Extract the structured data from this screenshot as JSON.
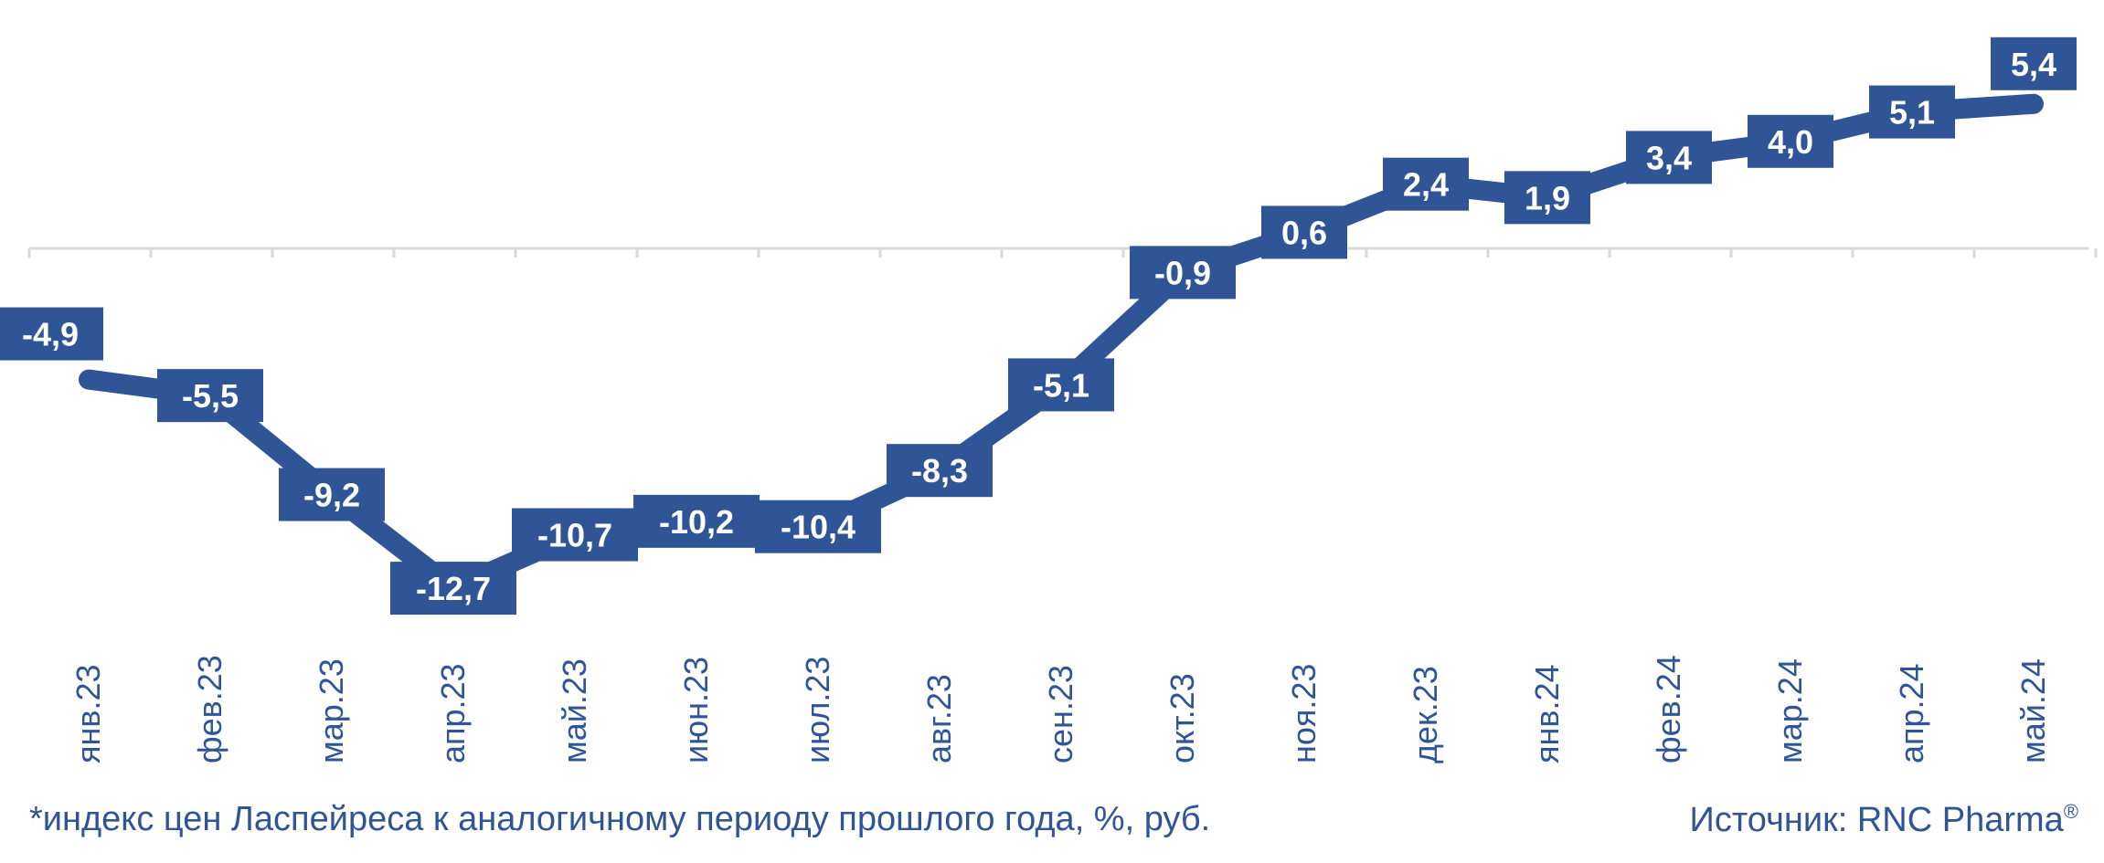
{
  "chart_data": {
    "type": "line",
    "categories": [
      "янв.23",
      "фев.23",
      "мар.23",
      "апр.23",
      "май.23",
      "июн.23",
      "июл.23",
      "авг.23",
      "сен.23",
      "окт.23",
      "ноя.23",
      "дек.23",
      "янв.24",
      "фев.24",
      "мар.24",
      "апр.24",
      "май.24"
    ],
    "values": [
      -4.9,
      -5.5,
      -9.2,
      -12.7,
      -10.7,
      -10.2,
      -10.4,
      -8.3,
      -5.1,
      -0.9,
      0.6,
      2.4,
      1.9,
      3.4,
      4.0,
      5.1,
      5.4
    ],
    "value_labels": [
      "-4,9",
      "-5,5",
      "-9,2",
      "-12,7",
      "-10,7",
      "-10,2",
      "-10,4",
      "-8,3",
      "-5,1",
      "-0,9",
      "0,6",
      "2,4",
      "1,9",
      "3,4",
      "4,0",
      "5,1",
      "5,4"
    ],
    "title": "",
    "xlabel": "",
    "ylabel": "",
    "ylim": [
      -14,
      7
    ],
    "grid": false,
    "legend": "none",
    "line_color": "#2f5597",
    "label_bg": "#2f5597",
    "label_text_color": "#ffffff",
    "axis_color": "#d9d9d9"
  },
  "footnote": "*индекс цен Ласпейреса к аналогичному периоду прошлого года, %, руб.",
  "source": {
    "text": "Источник: RNC Pharma",
    "mark": "®"
  }
}
